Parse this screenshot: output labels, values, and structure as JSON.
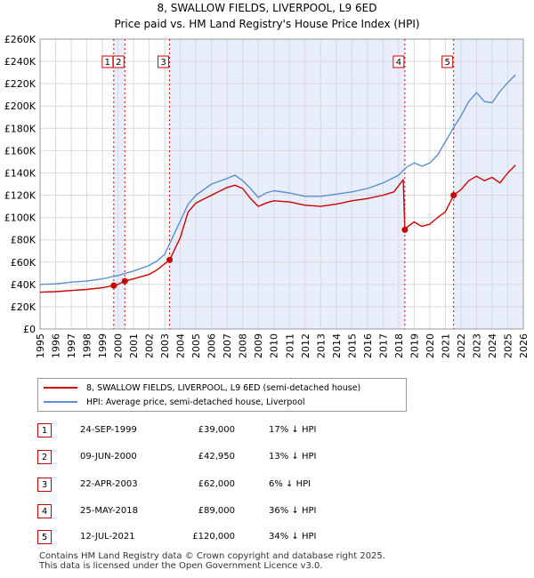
{
  "chart_data": {
    "type": "line",
    "title": "8, SWALLOW FIELDS, LIVERPOOL, L9 6ED",
    "subtitle": "Price paid vs. HM Land Registry's House Price Index (HPI)",
    "xlim": [
      1995,
      2026
    ],
    "ylim": [
      0,
      260000
    ],
    "x_ticks": [
      "1995",
      "1996",
      "1997",
      "1998",
      "1999",
      "2000",
      "2001",
      "2002",
      "2003",
      "2004",
      "2005",
      "2006",
      "2007",
      "2008",
      "2009",
      "2010",
      "2011",
      "2012",
      "2013",
      "2014",
      "2015",
      "2016",
      "2017",
      "2018",
      "2019",
      "2020",
      "2021",
      "2022",
      "2023",
      "2024",
      "2025",
      "2026"
    ],
    "y_ticks": [
      {
        "value": 0,
        "label": "£0"
      },
      {
        "value": 20000,
        "label": "£20K"
      },
      {
        "value": 40000,
        "label": "£40K"
      },
      {
        "value": 60000,
        "label": "£60K"
      },
      {
        "value": 80000,
        "label": "£80K"
      },
      {
        "value": 100000,
        "label": "£100K"
      },
      {
        "value": 120000,
        "label": "£120K"
      },
      {
        "value": 140000,
        "label": "£140K"
      },
      {
        "value": 160000,
        "label": "£160K"
      },
      {
        "value": 180000,
        "label": "£180K"
      },
      {
        "value": 200000,
        "label": "£200K"
      },
      {
        "value": 220000,
        "label": "£220K"
      },
      {
        "value": 240000,
        "label": "£240K"
      },
      {
        "value": 260000,
        "label": "£260K"
      }
    ],
    "shaded_periods": [
      [
        1999.73,
        2000.44
      ],
      [
        2003.31,
        2018.4
      ],
      [
        2021.53,
        2026
      ]
    ],
    "series": [
      {
        "name": "8, SWALLOW FIELDS, LIVERPOOL, L9 6ED (semi-detached house)",
        "color": "#cc0000",
        "x": [
          1995,
          1996,
          1997,
          1998,
          1999,
          1999.73,
          2000,
          2000.44,
          2001,
          2002,
          2002.5,
          2003.31,
          2004,
          2004.5,
          2005,
          2006,
          2007,
          2007.5,
          2008,
          2008.5,
          2009,
          2009.5,
          2010,
          2011,
          2012,
          2013,
          2014,
          2015,
          2016,
          2017,
          2017.7,
          2018.3,
          2018.4,
          2018.6,
          2019,
          2019.5,
          2020,
          2020.5,
          2021,
          2021.53,
          2022,
          2022.5,
          2023,
          2023.5,
          2024,
          2024.5,
          2025,
          2025.5
        ],
        "y": [
          33000,
          33500,
          34500,
          35500,
          37000,
          39000,
          40000,
          42950,
          45000,
          49000,
          53000,
          62000,
          82000,
          105000,
          113000,
          120000,
          127000,
          129000,
          126000,
          117000,
          110000,
          113000,
          115000,
          114000,
          111000,
          110000,
          112000,
          115000,
          117000,
          120000,
          123000,
          134000,
          89000,
          92000,
          96000,
          92000,
          94000,
          100000,
          105000,
          120000,
          125000,
          133000,
          137000,
          133000,
          136000,
          131000,
          140000,
          147000
        ]
      },
      {
        "name": "HPI: Average price, semi-detached house, Liverpool",
        "color": "#5b8fd0",
        "x": [
          1995,
          1996,
          1997,
          1998,
          1999,
          2000,
          2001,
          2002,
          2002.5,
          2003,
          2003.5,
          2004,
          2004.5,
          2005,
          2006,
          2007,
          2007.5,
          2008,
          2008.5,
          2009,
          2009.5,
          2010,
          2011,
          2012,
          2013,
          2014,
          2015,
          2016,
          2017,
          2018,
          2018.5,
          2019,
          2019.5,
          2020,
          2020.5,
          2021,
          2021.5,
          2022,
          2022.5,
          2023,
          2023.5,
          2024,
          2024.5,
          2025,
          2025.5
        ],
        "y": [
          40000,
          40500,
          42000,
          43000,
          45000,
          48000,
          52000,
          57000,
          61000,
          67000,
          82000,
          97000,
          112000,
          120000,
          130000,
          135000,
          138000,
          133000,
          126000,
          118000,
          122000,
          124000,
          122000,
          119000,
          119000,
          121000,
          123000,
          126000,
          131000,
          138000,
          145000,
          149000,
          146000,
          149000,
          156000,
          168000,
          180000,
          191000,
          204000,
          212000,
          204000,
          203000,
          213000,
          221000,
          228000
        ]
      }
    ],
    "sales": [
      {
        "label": "1",
        "x": 1999.73,
        "price": 39000,
        "date": "24-SEP-1999",
        "price_text": "£39,000",
        "hpi": "17% ↓ HPI"
      },
      {
        "label": "2",
        "x": 2000.44,
        "price": 42950,
        "date": "09-JUN-2000",
        "price_text": "£42,950",
        "hpi": "13% ↓ HPI"
      },
      {
        "label": "3",
        "x": 2003.31,
        "price": 62000,
        "date": "22-APR-2003",
        "price_text": "£62,000",
        "hpi": "6% ↓ HPI"
      },
      {
        "label": "4",
        "x": 2018.4,
        "price": 89000,
        "date": "25-MAY-2018",
        "price_text": "£89,000",
        "hpi": "36% ↓ HPI"
      },
      {
        "label": "5",
        "x": 2021.53,
        "price": 120000,
        "date": "12-JUL-2021",
        "price_text": "£120,000",
        "hpi": "34% ↓ HPI"
      }
    ]
  },
  "legend": {
    "property": "8, SWALLOW FIELDS, LIVERPOOL, L9 6ED (semi-detached house)",
    "hpi": "HPI: Average price, semi-detached house, Liverpool"
  },
  "colors": {
    "property": "#cc0000",
    "hpi": "#5b8fd0",
    "shade": "#e8eefb",
    "grid": "#d9d9d9"
  },
  "footer": {
    "line1": "Contains HM Land Registry data © Crown copyright and database right 2025.",
    "line2": "This data is licensed under the Open Government Licence v3.0."
  }
}
